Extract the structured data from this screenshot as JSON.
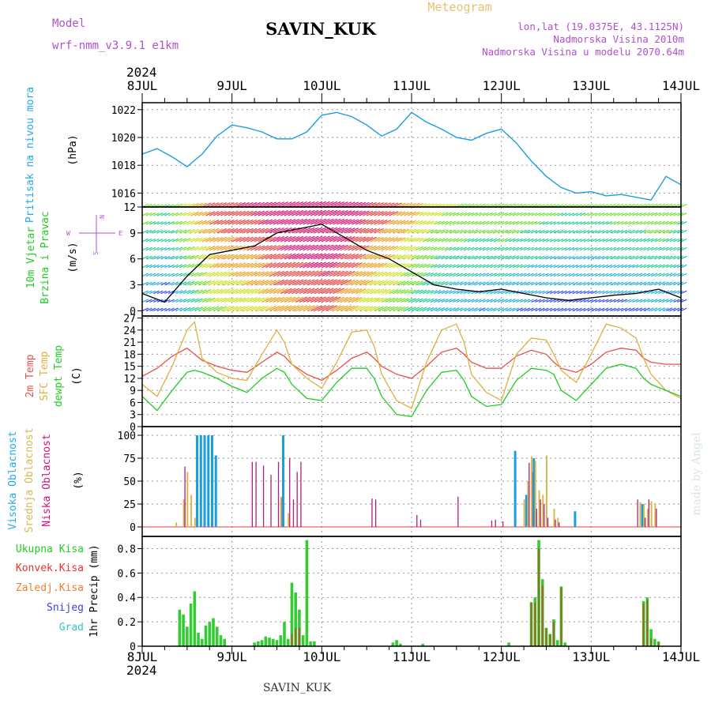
{
  "header": {
    "model_label": "Model",
    "model_name": "wrf-nmm_v3.9.1 e1km",
    "station": "SAVIN_KUK",
    "app_title": "Meteogram",
    "lonlat": "lon,lat (19.0375E, 43.1125N)",
    "altitude": "Nadmorska Visina 2010m",
    "model_altitude": "Nadmorska Visina u modelu 2070.64m"
  },
  "footer": {
    "station": "SAVIN_KUK",
    "credit": "made by Angel"
  },
  "time_axis": {
    "year": "2024",
    "labels": [
      "8JUL",
      "9JUL",
      "10JUL",
      "11JUL",
      "12JUL",
      "13JUL",
      "14JUL"
    ]
  },
  "colors": {
    "pressure": "#1a9ee0",
    "temp2m": "#e8504a",
    "sfc": "#e0b040",
    "dewpt": "#22cc22",
    "high_cloud": "#1a9ee0",
    "mid_cloud": "#d8b850",
    "low_cloud": "#b0207a",
    "total_precip": "#33cc33",
    "conv_precip": "#e83030",
    "frozen_precip": "#ee8030",
    "snow": "#4040e0",
    "hail": "#30c8c8"
  },
  "panels": {
    "pressure": {
      "ylabel_main": "Pritisak na nivou mora",
      "unit": "(hPa)",
      "ticks": [
        "1016",
        "1018",
        "1020",
        "1022"
      ]
    },
    "wind": {
      "ylabel_main": "10m Vjetar",
      "ylabel_sub": "Brzina i Pravac",
      "unit": "(m/s)",
      "compass": {
        "n": "N",
        "w": "W",
        "e": "E",
        "s": "S"
      },
      "ticks": [
        "0",
        "3",
        "6",
        "9",
        "12"
      ]
    },
    "temperature": {
      "l1": "2m Temp",
      "l2": "SFC Temp",
      "l3": "dewpt Temp",
      "unit": "(C)",
      "ticks": [
        "0",
        "3",
        "6",
        "9",
        "12",
        "15",
        "18",
        "21",
        "24",
        "27"
      ]
    },
    "cloud": {
      "l1": "Visoka Oblacnost",
      "l2": "Srednja Oblacnost",
      "l3": "Niska Oblacnost",
      "unit": "(%)",
      "ticks": [
        "0",
        "25",
        "50",
        "75",
        "100"
      ]
    },
    "precip": {
      "legend": [
        "Ukupna Kisa",
        "Konvek.Kisa",
        "Zaledj.Kisa",
        "Snijeg",
        "Grad"
      ],
      "ylabel": "1hr Precip (mm)",
      "ticks": [
        "0",
        "0.2",
        "0.4",
        "0.6",
        "0.8"
      ]
    }
  },
  "chart_data": [
    {
      "type": "line",
      "title": "Pritisak na nivou mora",
      "ylabel": "(hPa)",
      "ylim": [
        1015,
        1022.5
      ],
      "x_hours": [
        0,
        4,
        8,
        12,
        16,
        20,
        24,
        28,
        32,
        36,
        40,
        44,
        48,
        52,
        56,
        60,
        64,
        68,
        72,
        76,
        80,
        84,
        88,
        92,
        96,
        100,
        104,
        108,
        112,
        116,
        120,
        124,
        128,
        132,
        136,
        140,
        144
      ],
      "series": [
        {
          "name": "Pritisak na nivou mora",
          "values": [
            1018.8,
            1019.2,
            1018.6,
            1017.9,
            1018.8,
            1020.1,
            1020.9,
            1020.7,
            1020.4,
            1019.9,
            1019.9,
            1020.4,
            1021.6,
            1021.8,
            1021.5,
            1020.9,
            1020.1,
            1020.6,
            1021.8,
            1021.1,
            1020.6,
            1020.0,
            1019.8,
            1020.3,
            1020.6,
            1019.6,
            1018.3,
            1017.2,
            1016.4,
            1016.0,
            1016.1,
            1015.8,
            1015.9,
            1015.7,
            1015.5,
            1017.2,
            1016.6
          ]
        }
      ]
    },
    {
      "type": "line",
      "title": "10m Vjetar Brzina i Pravac",
      "ylabel": "(m/s)",
      "ylim": [
        -0.6,
        12
      ],
      "x_hours": [
        0,
        6,
        12,
        18,
        24,
        30,
        36,
        42,
        48,
        54,
        60,
        66,
        72,
        78,
        84,
        90,
        96,
        102,
        108,
        114,
        120,
        126,
        132,
        138,
        144
      ],
      "series": [
        {
          "name": "wind_speed",
          "values": [
            2.0,
            1.0,
            4.0,
            6.5,
            7.0,
            7.5,
            9.0,
            9.5,
            10.0,
            8.5,
            7.0,
            6.0,
            4.5,
            3.0,
            2.5,
            2.2,
            2.5,
            2.0,
            1.5,
            1.2,
            1.5,
            1.8,
            2.0,
            2.5,
            1.5
          ]
        }
      ]
    },
    {
      "type": "line",
      "title": "",
      "ylabel": "(C)",
      "ylim": [
        0,
        27.5
      ],
      "x_hours": [
        0,
        4,
        8,
        12,
        14,
        16,
        20,
        24,
        28,
        32,
        36,
        38,
        40,
        44,
        48,
        52,
        56,
        60,
        62,
        64,
        68,
        72,
        76,
        80,
        84,
        86,
        88,
        92,
        96,
        100,
        104,
        108,
        110,
        112,
        116,
        120,
        124,
        128,
        132,
        134,
        136,
        140,
        144
      ],
      "series": [
        {
          "name": "2m Temp",
          "values": [
            12.5,
            14.5,
            17.5,
            19.5,
            18.0,
            16.5,
            15.0,
            14.0,
            13.5,
            16.0,
            18.5,
            17.5,
            15.5,
            13.0,
            11.5,
            14.0,
            17.0,
            18.5,
            17.0,
            15.0,
            13.0,
            12.0,
            15.0,
            18.5,
            19.5,
            18.0,
            16.0,
            14.5,
            14.5,
            17.5,
            19.0,
            18.0,
            16.0,
            14.5,
            13.5,
            15.5,
            18.5,
            19.5,
            19.0,
            17.0,
            16.0,
            15.5,
            15.5
          ]
        },
        {
          "name": "SFC Temp",
          "values": [
            10.5,
            7.5,
            15.0,
            24.0,
            26.0,
            17.0,
            13.5,
            12.0,
            11.5,
            18.0,
            24.0,
            21.0,
            15.5,
            12.0,
            9.5,
            16.0,
            23.5,
            24.0,
            20.0,
            13.0,
            6.5,
            4.5,
            16.0,
            24.0,
            25.5,
            21.0,
            13.0,
            8.5,
            6.5,
            18.0,
            22.0,
            21.5,
            18.0,
            14.0,
            11.0,
            18.0,
            25.5,
            24.5,
            22.0,
            17.0,
            13.0,
            9.0,
            7.0
          ]
        },
        {
          "name": "dewpt Temp",
          "values": [
            7.5,
            4.0,
            9.0,
            13.5,
            14.0,
            13.5,
            12.0,
            10.0,
            8.5,
            12.0,
            14.5,
            13.5,
            10.5,
            7.0,
            6.5,
            11.0,
            14.5,
            14.5,
            12.0,
            7.5,
            3.0,
            2.5,
            9.0,
            13.5,
            14.0,
            11.5,
            7.5,
            5.0,
            5.5,
            11.5,
            14.5,
            14.0,
            13.0,
            9.0,
            6.5,
            10.5,
            14.5,
            15.5,
            14.5,
            12.0,
            10.5,
            9.0,
            7.5
          ]
        }
      ]
    },
    {
      "type": "bar",
      "title": "",
      "ylabel": "(%)",
      "ylim": [
        0,
        100
      ],
      "x_hours": [
        9,
        11,
        12,
        13,
        14,
        15,
        16,
        17,
        18,
        19,
        20,
        29,
        30,
        32,
        34,
        36,
        37,
        38,
        39,
        40,
        41,
        42,
        61,
        62,
        73,
        74,
        84,
        93,
        94,
        96,
        100,
        101,
        102,
        103,
        104,
        105,
        106,
        107,
        108,
        110,
        111,
        116,
        132,
        133,
        134,
        135,
        136,
        137
      ],
      "series": [
        {
          "name": "Visoka Oblacnost",
          "values": [
            0,
            0,
            0,
            0,
            0,
            100,
            100,
            100,
            100,
            100,
            78,
            0,
            0,
            0,
            0,
            0,
            0,
            100,
            0,
            0,
            0,
            0,
            0,
            0,
            0,
            0,
            0,
            0,
            0,
            0,
            83,
            0,
            0,
            35,
            0,
            75,
            0,
            0,
            0,
            0,
            0,
            17,
            0,
            0,
            25,
            0,
            0,
            0
          ]
        },
        {
          "name": "Srednja Oblacnost",
          "values": [
            5,
            30,
            60,
            35,
            10,
            0,
            0,
            0,
            0,
            0,
            0,
            0,
            0,
            0,
            0,
            0,
            33,
            0,
            15,
            0,
            0,
            0,
            0,
            0,
            0,
            0,
            0,
            0,
            0,
            0,
            0,
            0,
            30,
            50,
            77,
            72,
            40,
            35,
            78,
            20,
            10,
            0,
            0,
            27,
            25,
            20,
            28,
            26
          ]
        },
        {
          "name": "Niska Oblacnost",
          "values": [
            0,
            66,
            0,
            0,
            0,
            0,
            0,
            0,
            0,
            0,
            0,
            71,
            71,
            67,
            57,
            71,
            32,
            0,
            75,
            30,
            60,
            71,
            31,
            30,
            13,
            8,
            33,
            7,
            8,
            6,
            0,
            0,
            0,
            70,
            60,
            20,
            30,
            25,
            10,
            8,
            5,
            0,
            30,
            0,
            10,
            30,
            0,
            20
          ]
        }
      ]
    },
    {
      "type": "bar",
      "title": "",
      "ylabel": "1hr Precip (mm)",
      "ylim": [
        0,
        0.9
      ],
      "x_hours": [
        10,
        11,
        12,
        13,
        14,
        15,
        16,
        17,
        18,
        19,
        20,
        21,
        22,
        30,
        31,
        32,
        33,
        34,
        35,
        36,
        37,
        38,
        39,
        40,
        41,
        42,
        43,
        44,
        45,
        46,
        67,
        68,
        69,
        75,
        98,
        104,
        105,
        106,
        107,
        108,
        109,
        110,
        111,
        112,
        113,
        134,
        135,
        136,
        137,
        138
      ],
      "series": [
        {
          "name": "Ukupna Kisa",
          "values": [
            0.3,
            0.26,
            0.16,
            0.35,
            0.45,
            0.11,
            0.06,
            0.17,
            0.2,
            0.23,
            0.16,
            0.09,
            0.06,
            0.03,
            0.04,
            0.05,
            0.08,
            0.07,
            0.06,
            0.05,
            0.09,
            0.2,
            0.06,
            0.52,
            0.44,
            0.3,
            0.09,
            0.87,
            0.04,
            0.04,
            0.03,
            0.05,
            0.02,
            0.02,
            0.03,
            0.36,
            0.4,
            0.87,
            0.55,
            0.15,
            0.1,
            0.22,
            0.05,
            0.49,
            0.03,
            0.37,
            0.4,
            0.14,
            0.06,
            0.04
          ]
        },
        {
          "name": "Konvek.Kisa",
          "values": [
            0,
            0,
            0,
            0,
            0,
            0,
            0,
            0,
            0,
            0,
            0,
            0,
            0,
            0,
            0,
            0,
            0,
            0,
            0,
            0,
            0,
            0,
            0,
            0.1,
            0.15,
            0.15,
            0,
            0,
            0,
            0,
            0,
            0,
            0,
            0,
            0,
            0.36,
            0.36,
            0.8,
            0.5,
            0.15,
            0.1,
            0.2,
            0,
            0.48,
            0,
            0.35,
            0.38,
            0.06,
            0,
            0.03
          ]
        }
      ]
    }
  ]
}
